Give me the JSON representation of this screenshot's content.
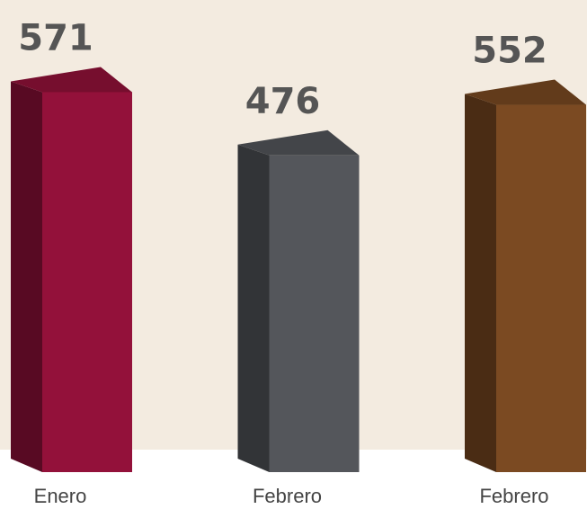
{
  "chart_data": {
    "type": "bar3d",
    "categories": [
      "Enero",
      "Febrero",
      "Febrero"
    ],
    "values": [
      571,
      476,
      552
    ],
    "colors": [
      "#93113a",
      "#54565b",
      "#7b4a22"
    ]
  }
}
